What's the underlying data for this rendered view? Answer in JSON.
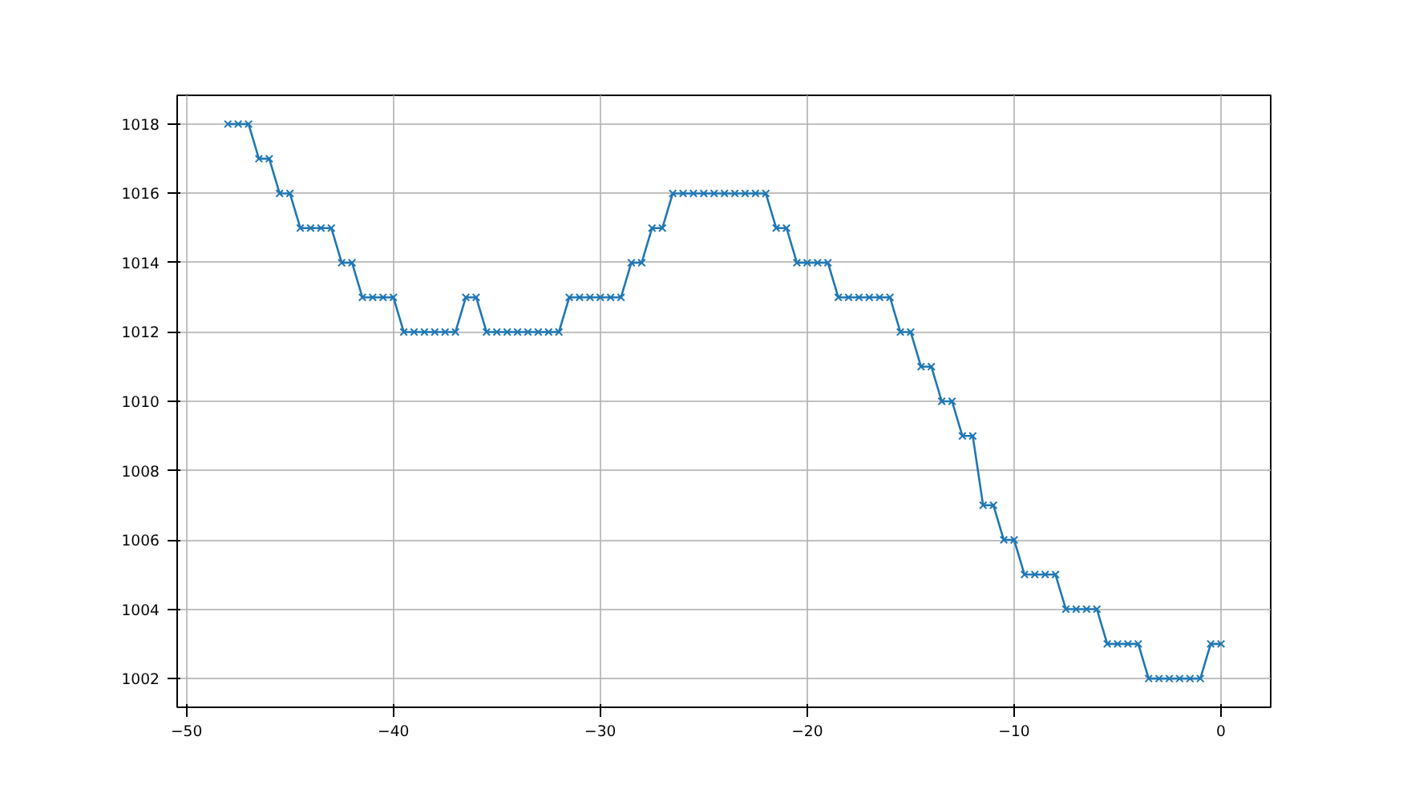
{
  "chart_data": {
    "type": "line",
    "x": [
      -48,
      -47.5,
      -47,
      -46.5,
      -46,
      -45.5,
      -45,
      -44.5,
      -44,
      -43.5,
      -43,
      -42.5,
      -42,
      -41.5,
      -41,
      -40.5,
      -40,
      -39.5,
      -39,
      -38.5,
      -38,
      -37.5,
      -37,
      -36.5,
      -36,
      -35.5,
      -35,
      -34.5,
      -34,
      -33.5,
      -33,
      -32.5,
      -32,
      -31.5,
      -31,
      -30.5,
      -30,
      -29.5,
      -29,
      -28.5,
      -28,
      -27.5,
      -27,
      -26.5,
      -26,
      -25.5,
      -25,
      -24.5,
      -24,
      -23.5,
      -23,
      -22.5,
      -22,
      -21.5,
      -21,
      -20.5,
      -20,
      -19.5,
      -19,
      -18.5,
      -18,
      -17.5,
      -17,
      -16.5,
      -16,
      -15.5,
      -15,
      -14.5,
      -14,
      -13.5,
      -13,
      -12.5,
      -12,
      -11.5,
      -11,
      -10.5,
      -10,
      -9.5,
      -9,
      -8.5,
      -8,
      -7.5,
      -7,
      -6.5,
      -6,
      -5.5,
      -5,
      -4.5,
      -4,
      -3.5,
      -3,
      -2.5,
      -2,
      -1.5,
      -1,
      -0.5,
      0
    ],
    "series": [
      {
        "color": "#1f77b4",
        "values": [
          1018,
          1018,
          1018,
          1017,
          1017,
          1016,
          1016,
          1015,
          1015,
          1015,
          1015,
          1014,
          1014,
          1013,
          1013,
          1013,
          1013,
          1012,
          1012,
          1012,
          1012,
          1012,
          1012,
          1013,
          1013,
          1012,
          1012,
          1012,
          1012,
          1012,
          1012,
          1012,
          1012,
          1013,
          1013,
          1013,
          1013,
          1013,
          1013,
          1014,
          1014,
          1015,
          1015,
          1016,
          1016,
          1016,
          1016,
          1016,
          1016,
          1016,
          1016,
          1016,
          1016,
          1015,
          1015,
          1014,
          1014,
          1014,
          1014,
          1013,
          1013,
          1013,
          1013,
          1013,
          1013,
          1012,
          1012,
          1011,
          1011,
          1010,
          1010,
          1009,
          1009,
          1007,
          1007,
          1006,
          1006,
          1005,
          1005,
          1005,
          1005,
          1004,
          1004,
          1004,
          1004,
          1003,
          1003,
          1003,
          1003,
          1002,
          1002,
          1002,
          1002,
          1002,
          1002,
          1003,
          1003
        ]
      }
    ],
    "xlim": [
      -50.45,
      2.4
    ],
    "ylim": [
      1001.17,
      1018.83
    ],
    "xticks": [
      -50,
      -40,
      -30,
      -20,
      -10,
      0
    ],
    "yticks": [
      1002,
      1004,
      1006,
      1008,
      1010,
      1012,
      1014,
      1016,
      1018
    ],
    "grid": true,
    "marker": "cross",
    "line_style": "solid"
  }
}
